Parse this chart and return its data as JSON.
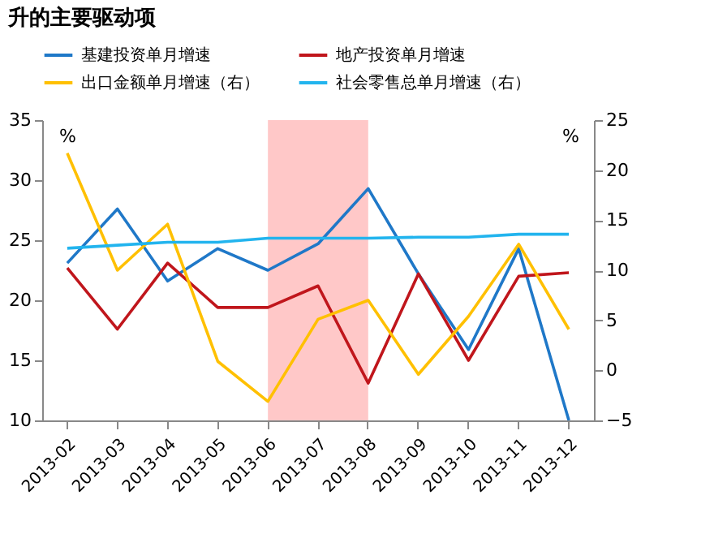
{
  "chart_data": {
    "type": "line",
    "title": "升的主要驱动项",
    "categories": [
      "2013-02",
      "2013-03",
      "2013-04",
      "2013-05",
      "2013-06",
      "2013-07",
      "2013-08",
      "2013-09",
      "2013-10",
      "2013-11",
      "2013-12"
    ],
    "series": [
      {
        "name": "基建投资单月增速",
        "color": "#1f78c8",
        "values": [
          23.1,
          27.6,
          21.6,
          24.3,
          22.5,
          24.7,
          29.3,
          22.2,
          15.9,
          24.3,
          10.0
        ]
      },
      {
        "name": "地产投资单月增速",
        "color": "#c0161c",
        "values": [
          22.7,
          17.6,
          23.1,
          19.4,
          19.4,
          21.2,
          13.1,
          22.2,
          15.0,
          22.0,
          22.3
        ]
      },
      {
        "name": "出口金额单月增速（右）",
        "color": "#ffc000",
        "axis": "y2",
        "values": [
          21.7,
          10.0,
          14.6,
          0.9,
          -3.1,
          5.1,
          7.0,
          -0.4,
          5.4,
          12.6,
          4.1
        ]
      },
      {
        "name": "社会零售总单月增速（右）",
        "color": "#22b4ee",
        "axis": "y2",
        "values": [
          12.2,
          12.5,
          12.8,
          12.8,
          13.2,
          13.2,
          13.2,
          13.3,
          13.3,
          13.6,
          13.6
        ]
      }
    ],
    "ylabel": "%",
    "y2label": "%",
    "ylim": [
      10,
      35
    ],
    "yticks": [
      10,
      15,
      20,
      25,
      30,
      35
    ],
    "y2lim": [
      -5,
      25
    ],
    "y2ticks": [
      -5,
      0,
      5,
      10,
      15,
      20,
      25
    ],
    "bands": [
      {
        "axis": "x",
        "from": "2013-06",
        "to": "2013-08",
        "color": "#ffc8c8"
      }
    ],
    "grid": false,
    "legend": "top",
    "marker": "none",
    "line_style": "solid"
  }
}
